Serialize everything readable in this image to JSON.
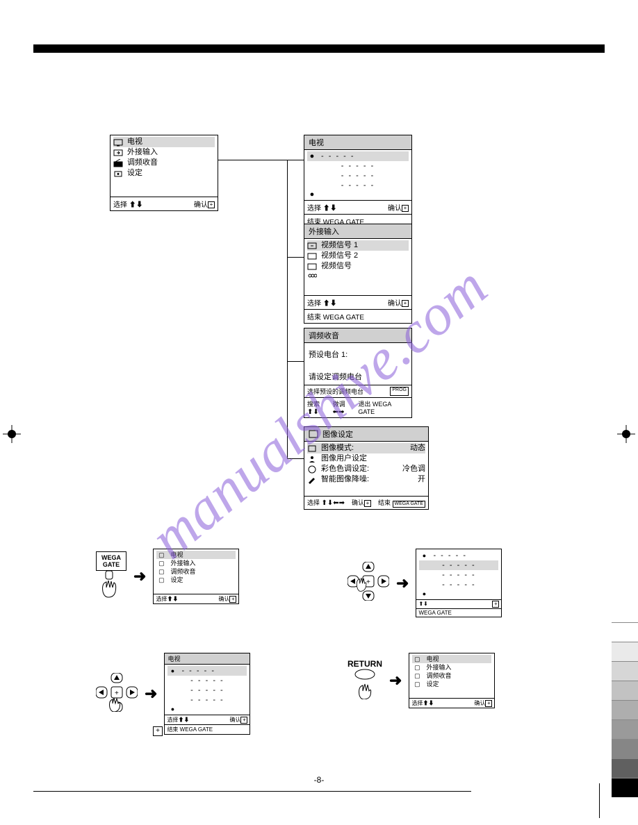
{
  "watermark": "manualshive.com",
  "topbar_color": "#000000",
  "panels": {
    "main": {
      "items": [
        {
          "icon": "tv",
          "label": "电视",
          "highlight": true
        },
        {
          "icon": "input",
          "label": "外接输入",
          "highlight": false
        },
        {
          "icon": "radio",
          "label": "调频收音",
          "highlight": false
        },
        {
          "icon": "gear",
          "label": "设定",
          "highlight": false
        }
      ],
      "footer_left": "选择",
      "footer_right": "确认"
    },
    "tv": {
      "title": "电视",
      "placeholder": "- - - - -",
      "rows": 4,
      "footer_left": "选择",
      "footer_right": "确认",
      "footer2_left": "结束"
    },
    "ext": {
      "title": "外接输入",
      "items": [
        {
          "label": "视频信号 1",
          "highlight": true
        },
        {
          "label": "视频信号 2",
          "highlight": false
        },
        {
          "label": "视频信号",
          "highlight": false
        }
      ],
      "footer_left": "选择",
      "footer_right": "确认",
      "footer2_left": "结束"
    },
    "fm": {
      "title": "调频收音",
      "preset_label": "预设电台 1:",
      "hint": "请设定调频电台",
      "footer_a_left": "选择预设的调频电台",
      "footer_a_right": "PROG",
      "footer_b_left": "搜索",
      "footer_b_mid": "微调",
      "footer_b_right": "退出"
    },
    "picture": {
      "title": "图像设定",
      "rows": [
        {
          "label": "图像模式:",
          "value": "动态"
        },
        {
          "label": "图像用户设定",
          "value": ""
        },
        {
          "label": "彩色色调设定:",
          "value": "冷色调"
        },
        {
          "label": "智能图像降噪:",
          "value": "开"
        }
      ],
      "footer_left": "选择",
      "footer_mid": "确认",
      "footer_right": "结束"
    }
  },
  "steps": {
    "s1_btn": "WEGA\nGATE",
    "s3_return": "RETURN",
    "small_main": {
      "items": [
        "电视",
        "外接输入",
        "调频收音",
        "设定"
      ],
      "footer_left": "选择",
      "footer_right": "确认"
    },
    "small_tv": {
      "title": "电视",
      "placeholder": "- - - - -",
      "rows": 4,
      "footer_left": "选择",
      "footer_right": "确认",
      "footer2": "结束"
    }
  },
  "gray_strip": [
    "#ffffff",
    "#eaeaea",
    "#d6d6d6",
    "#c2c2c2",
    "#aeaeae",
    "#9a9a9a",
    "#868686",
    "#606060",
    "#000000"
  ],
  "page_number": "-8-"
}
